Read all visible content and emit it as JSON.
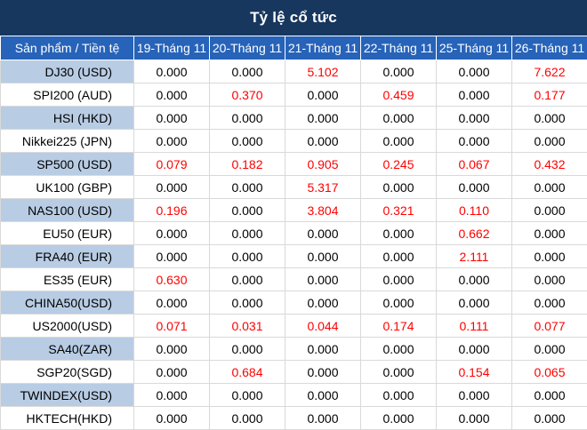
{
  "title": "Tỷ lệ cổ tức",
  "headers": [
    "Sản phẩm / Tiền tệ",
    "19-Tháng 11",
    "20-Tháng 11",
    "21-Tháng 11",
    "22-Tháng 11",
    "25-Tháng 11",
    "26-Tháng 11"
  ],
  "rows": [
    {
      "product": "DJ30 (USD)",
      "values": [
        "0.000",
        "0.000",
        "5.102",
        "0.000",
        "0.000",
        "7.622"
      ]
    },
    {
      "product": "SPI200 (AUD)",
      "values": [
        "0.000",
        "0.370",
        "0.000",
        "0.459",
        "0.000",
        "0.177"
      ]
    },
    {
      "product": "HSI (HKD)",
      "values": [
        "0.000",
        "0.000",
        "0.000",
        "0.000",
        "0.000",
        "0.000"
      ]
    },
    {
      "product": "Nikkei225 (JPN)",
      "values": [
        "0.000",
        "0.000",
        "0.000",
        "0.000",
        "0.000",
        "0.000"
      ]
    },
    {
      "product": "SP500 (USD)",
      "values": [
        "0.079",
        "0.182",
        "0.905",
        "0.245",
        "0.067",
        "0.432"
      ]
    },
    {
      "product": "UK100 (GBP)",
      "values": [
        "0.000",
        "0.000",
        "5.317",
        "0.000",
        "0.000",
        "0.000"
      ]
    },
    {
      "product": "NAS100 (USD)",
      "values": [
        "0.196",
        "0.000",
        "3.804",
        "0.321",
        "0.110",
        "0.000"
      ]
    },
    {
      "product": "EU50 (EUR)",
      "values": [
        "0.000",
        "0.000",
        "0.000",
        "0.000",
        "0.662",
        "0.000"
      ]
    },
    {
      "product": "FRA40 (EUR)",
      "values": [
        "0.000",
        "0.000",
        "0.000",
        "0.000",
        "2.111",
        "0.000"
      ]
    },
    {
      "product": "ES35 (EUR)",
      "values": [
        "0.630",
        "0.000",
        "0.000",
        "0.000",
        "0.000",
        "0.000"
      ]
    },
    {
      "product": "CHINA50(USD)",
      "values": [
        "0.000",
        "0.000",
        "0.000",
        "0.000",
        "0.000",
        "0.000"
      ]
    },
    {
      "product": "US2000(USD)",
      "values": [
        "0.071",
        "0.031",
        "0.044",
        "0.174",
        "0.111",
        "0.077"
      ]
    },
    {
      "product": "SA40(ZAR)",
      "values": [
        "0.000",
        "0.000",
        "0.000",
        "0.000",
        "0.000",
        "0.000"
      ]
    },
    {
      "product": "SGP20(SGD)",
      "values": [
        "0.000",
        "0.684",
        "0.000",
        "0.000",
        "0.154",
        "0.065"
      ]
    },
    {
      "product": "TWINDEX(USD)",
      "values": [
        "0.000",
        "0.000",
        "0.000",
        "0.000",
        "0.000",
        "0.000"
      ]
    },
    {
      "product": "HKTECH(HKD)",
      "values": [
        "0.000",
        "0.000",
        "0.000",
        "0.000",
        "0.000",
        "0.000"
      ]
    }
  ],
  "colors": {
    "header_bg": "#2763b8",
    "title_bg": "#17375e",
    "product_band": "#b8cce4",
    "positive_value": "#ff0000"
  }
}
